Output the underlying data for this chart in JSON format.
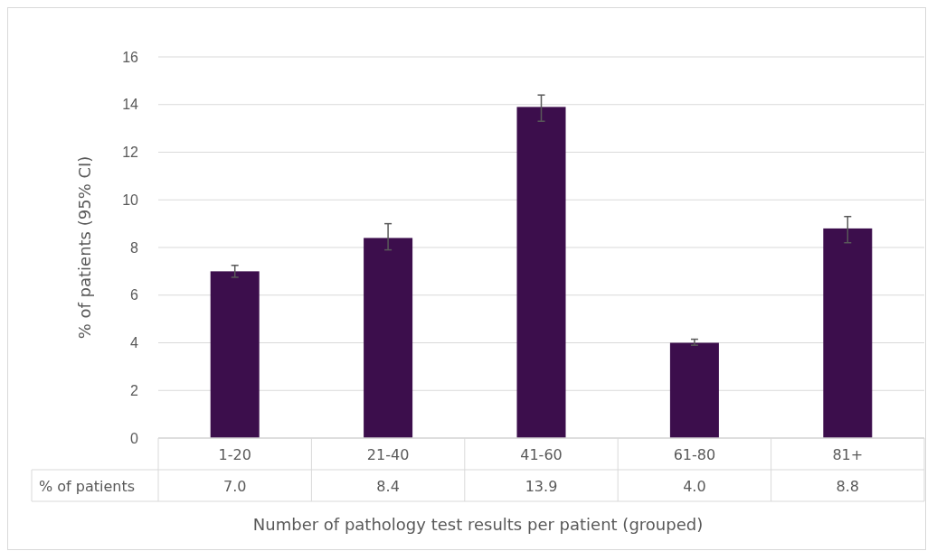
{
  "chart_data": {
    "type": "bar",
    "xlabel": "Number of pathology test results per patient (grouped)",
    "ylabel": "% of patients (95% CI)",
    "categories": [
      "1-20",
      "21-40",
      "41-60",
      "61-80",
      "81+"
    ],
    "series": [
      {
        "name": "% of patients",
        "color": "#3c0e4c",
        "values": [
          7.0,
          8.4,
          13.9,
          4.0,
          8.8
        ],
        "value_labels": [
          "7.0",
          "8.4",
          "13.9",
          "4.0",
          "8.8"
        ],
        "errors": [
          [
            6.75,
            7.25
          ],
          [
            7.9,
            9.0
          ],
          [
            13.3,
            14.4
          ],
          [
            3.9,
            4.15
          ],
          [
            8.2,
            9.3
          ]
        ]
      }
    ],
    "ylim": [
      0,
      16
    ],
    "yticks": [
      0,
      2,
      4,
      6,
      8,
      10,
      12,
      14,
      16
    ],
    "grid": "y"
  }
}
